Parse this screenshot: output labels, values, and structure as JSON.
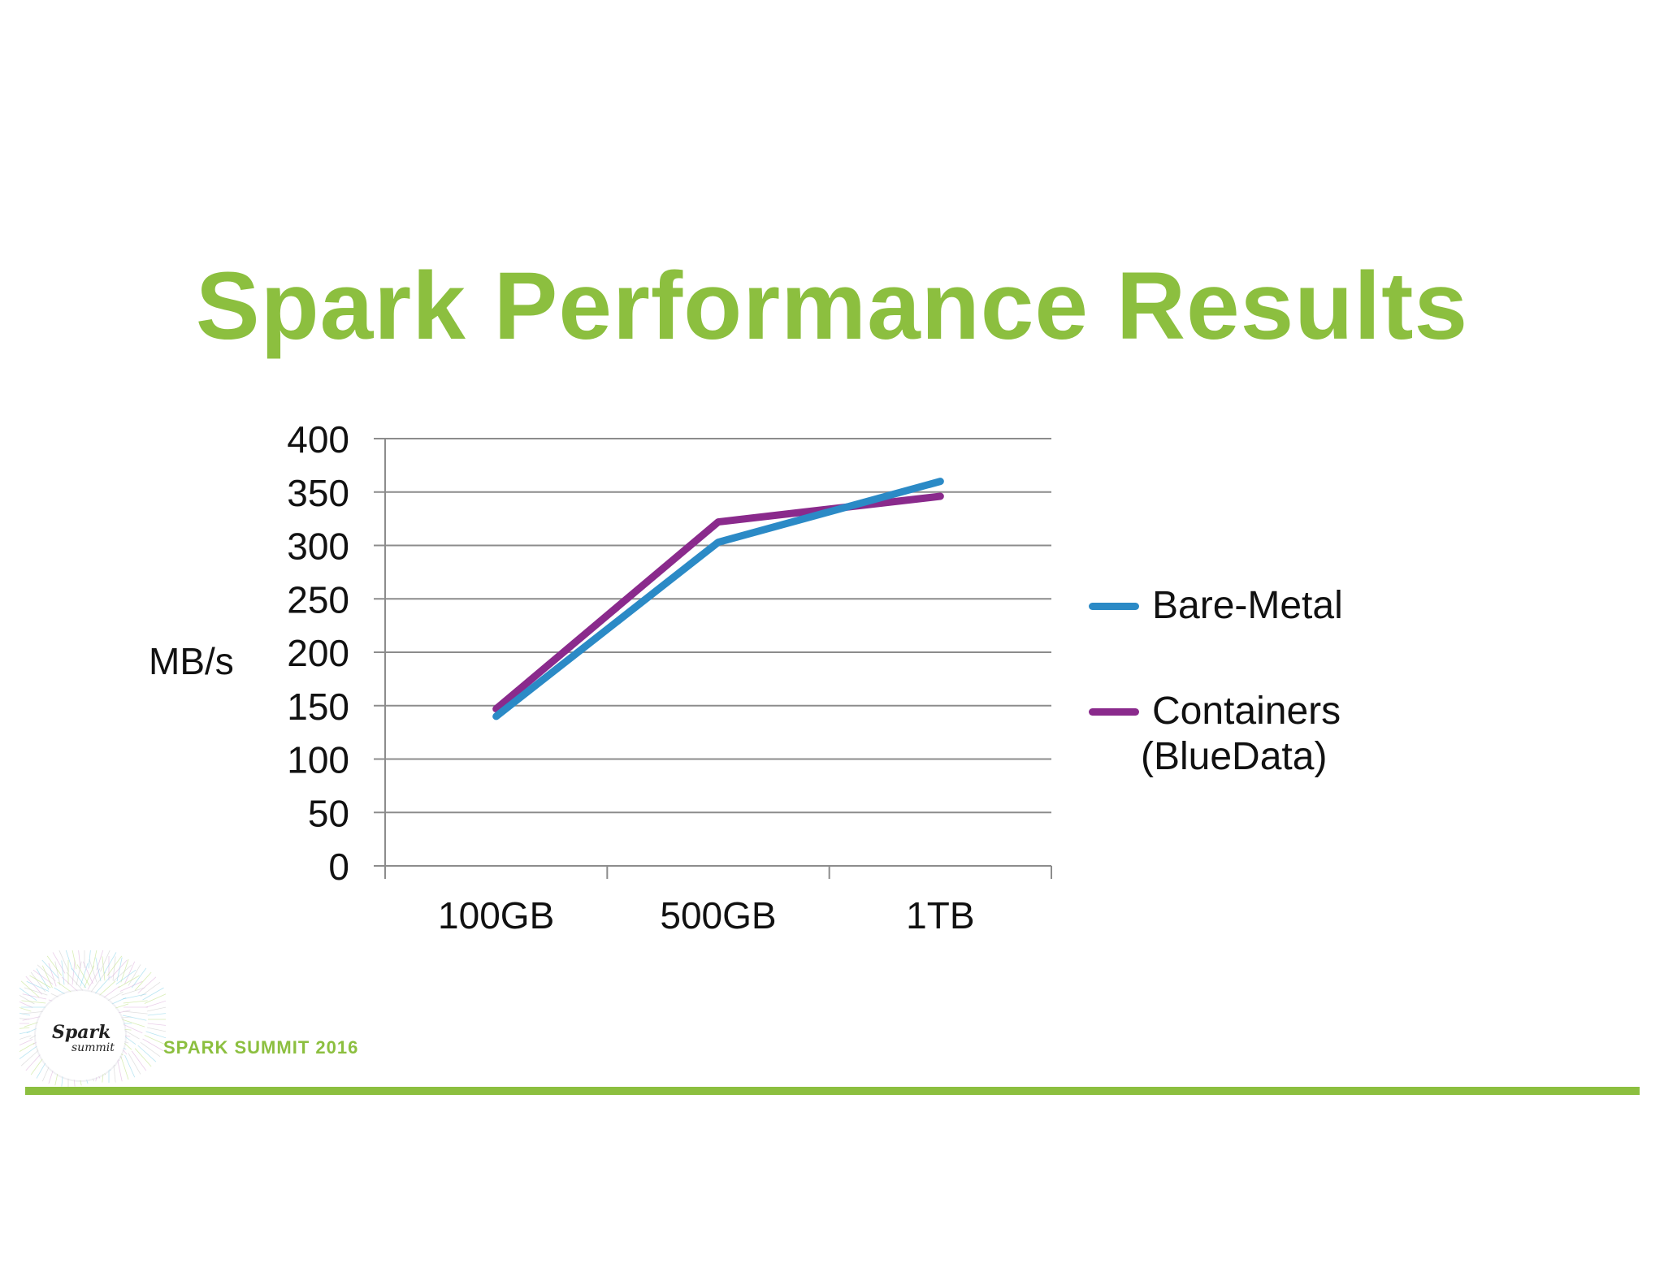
{
  "slide": {
    "title": "Spark Performance Results",
    "footer_text": "SPARK SUMMIT 2016",
    "logo_text_main": "Spark",
    "logo_text_sub": "summit"
  },
  "colors": {
    "title_green": "#8cbf3f",
    "footer_green": "#8cbf3f",
    "bare_metal": "#2b8ac6",
    "containers": "#8a2a8c",
    "grid": "#8c8c8c",
    "text": "#111111"
  },
  "chart_data": {
    "type": "line",
    "title": "Spark Performance Results",
    "xlabel": "",
    "ylabel": "MB/s",
    "categories": [
      "100GB",
      "500GB",
      "1TB"
    ],
    "ylim": [
      0,
      400
    ],
    "yticks": [
      0,
      50,
      100,
      150,
      200,
      250,
      300,
      350,
      400
    ],
    "grid": true,
    "legend_position": "right",
    "series": [
      {
        "name": "Bare-Metal",
        "values": [
          140,
          303,
          360
        ],
        "color": "#2b8ac6"
      },
      {
        "name": "Containers (BlueData)",
        "values": [
          147,
          322,
          346
        ],
        "color": "#8a2a8c"
      }
    ]
  }
}
